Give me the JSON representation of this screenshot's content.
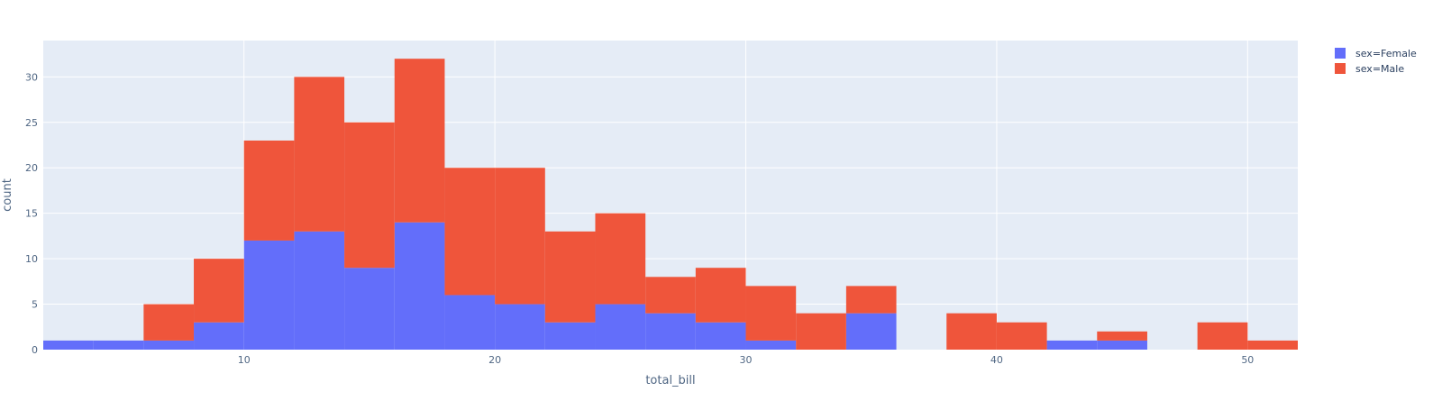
{
  "chart_data": {
    "type": "bar",
    "barmode": "stack",
    "bin_edges": [
      2,
      4,
      6,
      8,
      10,
      12,
      14,
      16,
      18,
      20,
      22,
      24,
      26,
      28,
      30,
      32,
      34,
      36,
      38,
      40,
      42,
      44,
      46,
      48,
      50,
      52
    ],
    "series": [
      {
        "name": "sex=Female",
        "color": "#636efa",
        "values": [
          1,
          1,
          1,
          3,
          12,
          13,
          9,
          14,
          6,
          5,
          3,
          5,
          4,
          3,
          1,
          0,
          4,
          0,
          0,
          0,
          1,
          1,
          0,
          0,
          0
        ]
      },
      {
        "name": "sex=Male",
        "color": "#ef553b",
        "values": [
          0,
          0,
          4,
          7,
          11,
          17,
          16,
          18,
          14,
          15,
          10,
          10,
          4,
          6,
          6,
          4,
          3,
          0,
          4,
          3,
          0,
          1,
          0,
          3,
          1
        ]
      }
    ],
    "xlabel": "total_bill",
    "ylabel": "count",
    "xlim": [
      2,
      52
    ],
    "ylim": [
      0,
      34
    ],
    "xticks": [
      10,
      20,
      30,
      40,
      50
    ],
    "yticks": [
      0,
      5,
      10,
      15,
      20,
      25,
      30
    ],
    "grid": true,
    "legend_position": "top-right",
    "plot_background": "#e5ecf6"
  }
}
